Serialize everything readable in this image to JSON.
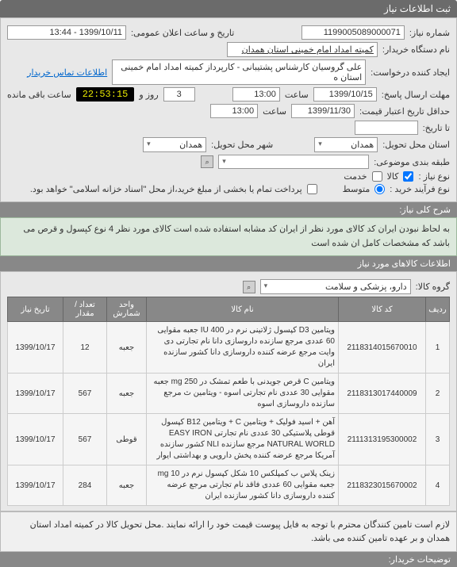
{
  "header": {
    "title": "ثبت اطلاعات نیاز"
  },
  "top": {
    "need_no_lbl": "شماره نیاز:",
    "need_no": "1199005089000071",
    "announce_lbl": "تاریخ و ساعت اعلان عمومی:",
    "announce_val": "1399/10/11 - 13:44",
    "buyer_lbl": "نام دستگاه خریدار:",
    "buyer_val": "کمیته امداد امام خمینی استان همدان",
    "creator_lbl": "ایجاد کننده درخواست:",
    "creator_val": "علی گروسیان کارشناس پشتیبانی - کارپرداز  کمیته امداد امام خمینی استان ه",
    "contact_link": "اطلاعات تماس خریدار",
    "deadline_lbl": "مهلت ارسال پاسخ:",
    "deadline_date": "1399/10/15",
    "deadline_hour_lbl": "ساعت",
    "deadline_hour": "13:00",
    "days_val": "3",
    "days_lbl": "روز و",
    "timer": "22:53:15",
    "remain_lbl": "ساعت باقی مانده",
    "valid_lbl": "حداقل تاریخ اعتبار قیمت:",
    "valid_date": "1399/11/30",
    "valid_hour_lbl": "ساعت",
    "valid_hour": "13:00",
    "expire_lbl": "تا تاریخ:",
    "delivery_province_lbl": "استان محل تحویل:",
    "delivery_province": "همدان",
    "delivery_city_lbl": "شهر محل تحویل:",
    "delivery_city": "همدان",
    "budget_lbl": "طبقه بندی موضوعی:",
    "budget_val": "",
    "type_lbl": "نوع نیاز :",
    "type_opt1": "کالا",
    "type_opt2": "خدمت",
    "process_lbl": "نوع فرآیند خرید :",
    "process_opt1": "متوسط",
    "process_note": "پرداخت تمام یا بخشی از مبلغ خرید،از محل \"اسناد خزانه اسلامی\" خواهد بود."
  },
  "desc": {
    "header": "شرح کلی نیاز:",
    "text": "به لحاظ نبودن ایران کد کالای مورد نظر از ایران کد مشابه استفاده شده است کالای مورد نظر 4 نوع کپسول و قرص می باشد که مشخصات کامل ان شده است"
  },
  "items": {
    "header": "اطلاعات کالاهای مورد نیاز",
    "group_lbl": "گروه کالا:",
    "group_val": "دارو، پزشکی و سلامت",
    "cols": [
      "ردیف",
      "کد کالا",
      "نام کالا",
      "واحد شمارش",
      "تعداد / مقدار",
      "تاریخ نیاز"
    ],
    "rows": [
      {
        "n": "1",
        "code": "2118314015670010",
        "name": "ویتامین D3 کپسول ژلاتینی نرم در IU 400 جعبه مقوایی 60 عددی مرجع سازنده داروسازی دانا نام تجارتی دی وایت مرجع عرضه کننده داروسازی دانا کشور سازنده ایران",
        "unit": "جعبه",
        "qty": "12",
        "date": "1399/10/17"
      },
      {
        "n": "2",
        "code": "2118313017440009",
        "name": "ویتامین C قرص جویدنی با طعم تمشک در mg 250 جعبه مقوایی 30 عددی نام تجارتی اسوه - ویتامین ث مرجع سازنده داروسازی اسوه",
        "unit": "جعبه",
        "qty": "567",
        "date": "1399/10/17"
      },
      {
        "n": "3",
        "code": "2111313195300002",
        "name": "آهن + اسید فولیک + ویتامین C + ویتامین B12 کپسول قوطی پلاستیکی 30 عددی نام تجارتی EASY IRON NATURAL WORLD مرجع سازنده NLI کشور سازنده آمریکا مرجع عرضه کننده پخش دارویی و بهداشتی ایوار",
        "unit": "قوطی",
        "qty": "567",
        "date": "1399/10/17"
      },
      {
        "n": "4",
        "code": "2118323015670002",
        "name": "زینک پلاس ب کمپلکس 10 شکل کپسول نرم در mg 10 جعبه مقوایی 60 عددی فاقد نام تجارتی مرجع عرضه کننده داروسازی دانا کشور سازنده ایران",
        "unit": "جعبه",
        "qty": "284",
        "date": "1399/10/17"
      }
    ]
  },
  "note": {
    "text": "لازم است تامین کنندگان محترم با توجه به فایل پیوست قیمت خود را ارائه نمایند .محل تحویل کالا در کمیته امداد استان همدان و بر عهده تامین کننده می باشد."
  },
  "footer": {
    "title": "توضیحات خریدار:"
  }
}
